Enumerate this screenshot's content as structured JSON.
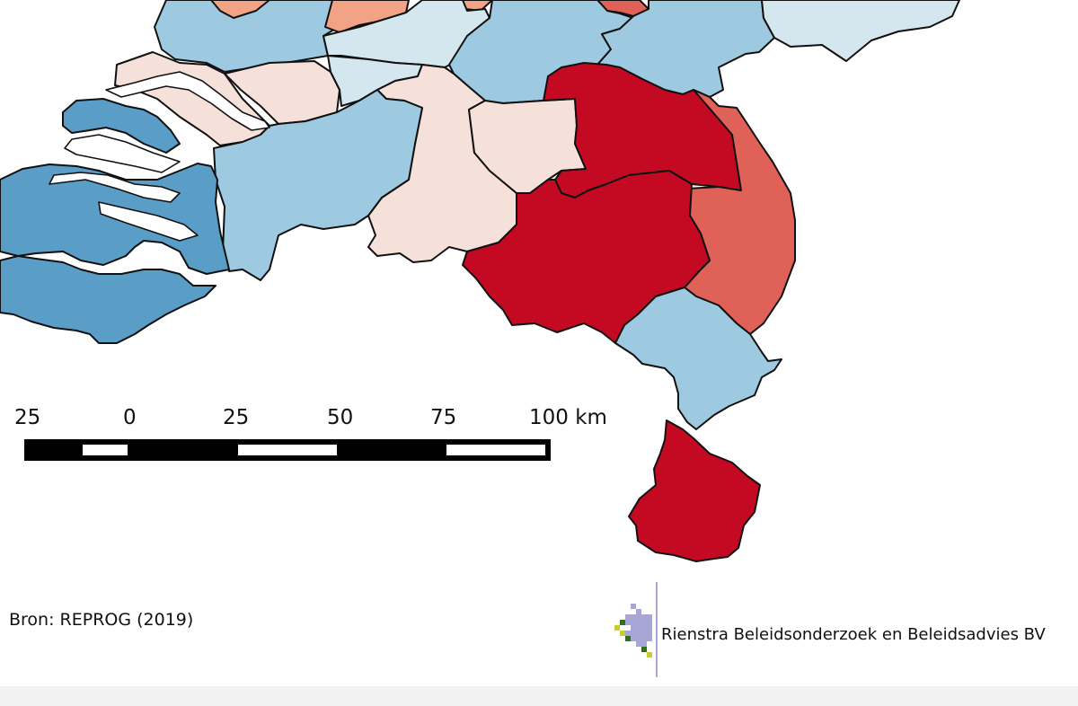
{
  "map": {
    "colors": {
      "dark_red": "#c40a22",
      "red": "#e06158",
      "salmon": "#f3a385",
      "light_pink": "#f6e0da",
      "very_light_blue": "#d5e7ee",
      "light_blue": "#9ecae1",
      "blue": "#5a9ec8",
      "outline": "#111111",
      "background": "#ffffff"
    }
  },
  "scale_bar": {
    "labels": [
      "25",
      "0",
      "25",
      "50",
      "75",
      "100 km"
    ],
    "unit": "km"
  },
  "source": {
    "text": "Bron: REPROG (2019)"
  },
  "logo": {
    "text": "Rienstra Beleidsonderzoek en Beleidsadvies BV",
    "colors": [
      "#a8a6d6",
      "#2f6e1f",
      "#c9cc2a"
    ]
  }
}
